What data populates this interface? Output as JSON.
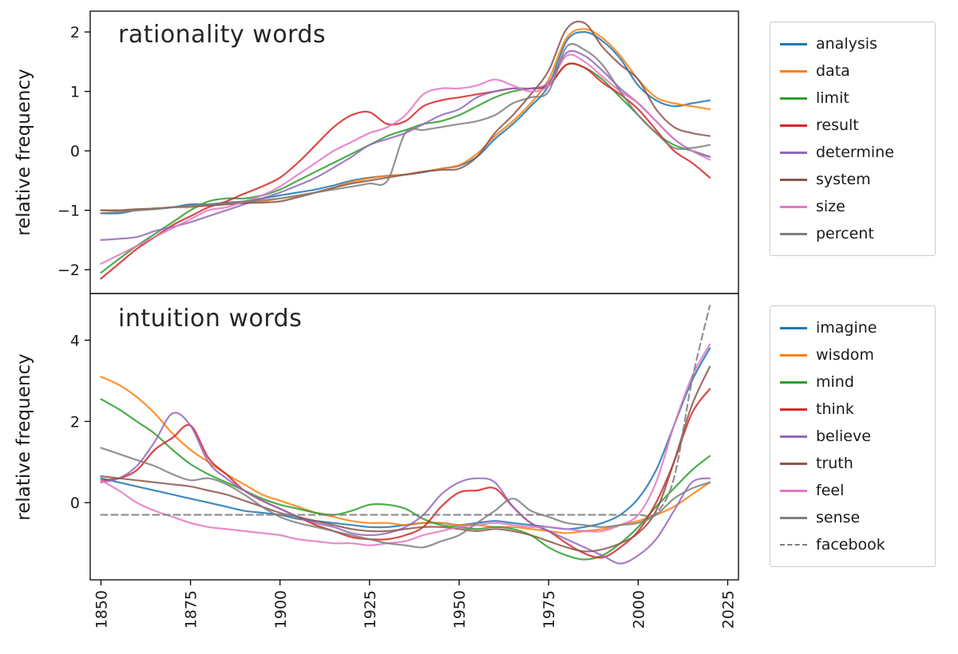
{
  "style": {
    "background": "#ffffff",
    "axis_color": "#000000",
    "text_color": "#1a1a1a",
    "legend_border": "#cccccc"
  },
  "chart_data": [
    {
      "type": "line",
      "title": "rationality words",
      "ylabel": "relative frequency",
      "xlabel": "",
      "legend_position": "right-outside",
      "grid": false,
      "xlim": [
        1847,
        2028
      ],
      "ylim": [
        -2.4,
        2.35
      ],
      "yticks": [
        2,
        1,
        0,
        -1,
        -2
      ],
      "xticks": [
        1850,
        1875,
        1900,
        1925,
        1950,
        1975,
        2000,
        2025
      ],
      "x": [
        1850,
        1855,
        1860,
        1865,
        1870,
        1875,
        1880,
        1885,
        1890,
        1895,
        1900,
        1905,
        1910,
        1915,
        1920,
        1925,
        1930,
        1935,
        1940,
        1945,
        1950,
        1955,
        1960,
        1965,
        1970,
        1975,
        1980,
        1985,
        1990,
        1995,
        2000,
        2005,
        2010,
        2015,
        2020
      ],
      "series": [
        {
          "name": "analysis",
          "color": "#1f77b4",
          "values": [
            -1.05,
            -1.05,
            -1.0,
            -0.98,
            -0.95,
            -0.9,
            -0.9,
            -0.87,
            -0.85,
            -0.8,
            -0.75,
            -0.7,
            -0.65,
            -0.58,
            -0.5,
            -0.45,
            -0.42,
            -0.4,
            -0.36,
            -0.3,
            -0.25,
            -0.1,
            0.2,
            0.45,
            0.75,
            1.1,
            1.85,
            2.0,
            1.85,
            1.55,
            1.1,
            0.85,
            0.75,
            0.8,
            0.85
          ]
        },
        {
          "name": "data",
          "color": "#ff7f0e",
          "values": [
            -1.0,
            -1.0,
            -1.0,
            -0.97,
            -0.95,
            -0.95,
            -0.92,
            -0.9,
            -0.87,
            -0.85,
            -0.8,
            -0.76,
            -0.7,
            -0.62,
            -0.52,
            -0.46,
            -0.42,
            -0.4,
            -0.35,
            -0.3,
            -0.24,
            -0.05,
            0.25,
            0.5,
            0.8,
            1.2,
            1.9,
            2.05,
            1.9,
            1.6,
            1.2,
            0.9,
            0.8,
            0.75,
            0.7
          ]
        },
        {
          "name": "limit",
          "color": "#2ca02c",
          "values": [
            -2.05,
            -1.82,
            -1.6,
            -1.4,
            -1.2,
            -1.0,
            -0.85,
            -0.8,
            -0.8,
            -0.75,
            -0.65,
            -0.5,
            -0.35,
            -0.2,
            -0.05,
            0.1,
            0.25,
            0.35,
            0.45,
            0.5,
            0.6,
            0.75,
            0.9,
            1.0,
            1.05,
            1.1,
            1.45,
            1.4,
            1.2,
            0.9,
            0.6,
            0.3,
            0.1,
            0.0,
            -0.1
          ]
        },
        {
          "name": "result",
          "color": "#d62728",
          "values": [
            -2.15,
            -1.9,
            -1.65,
            -1.45,
            -1.25,
            -1.1,
            -0.95,
            -0.85,
            -0.72,
            -0.6,
            -0.45,
            -0.2,
            0.1,
            0.4,
            0.6,
            0.65,
            0.45,
            0.5,
            0.75,
            0.85,
            0.9,
            0.95,
            1.0,
            1.05,
            1.05,
            1.1,
            1.45,
            1.4,
            1.15,
            0.95,
            0.7,
            0.35,
            0.0,
            -0.2,
            -0.45
          ]
        },
        {
          "name": "determine",
          "color": "#9467bd",
          "values": [
            -1.5,
            -1.48,
            -1.45,
            -1.35,
            -1.28,
            -1.2,
            -1.1,
            -1.0,
            -0.9,
            -0.8,
            -0.7,
            -0.58,
            -0.45,
            -0.28,
            -0.1,
            0.1,
            0.2,
            0.3,
            0.45,
            0.6,
            0.7,
            0.9,
            1.0,
            1.05,
            1.05,
            1.15,
            1.65,
            1.6,
            1.35,
            1.05,
            0.8,
            0.5,
            0.2,
            0.0,
            -0.1
          ]
        },
        {
          "name": "system",
          "color": "#8c564b",
          "values": [
            -1.0,
            -1.0,
            -0.98,
            -0.97,
            -0.95,
            -0.93,
            -0.92,
            -0.9,
            -0.88,
            -0.87,
            -0.85,
            -0.78,
            -0.7,
            -0.62,
            -0.55,
            -0.5,
            -0.45,
            -0.4,
            -0.35,
            -0.32,
            -0.3,
            -0.1,
            0.3,
            0.6,
            0.95,
            1.35,
            2.05,
            2.15,
            1.75,
            1.45,
            1.2,
            0.7,
            0.4,
            0.3,
            0.25
          ]
        },
        {
          "name": "size",
          "color": "#e377c2",
          "values": [
            -1.9,
            -1.75,
            -1.6,
            -1.45,
            -1.3,
            -1.15,
            -1.0,
            -0.95,
            -0.85,
            -0.75,
            -0.6,
            -0.4,
            -0.2,
            0.0,
            0.15,
            0.3,
            0.4,
            0.6,
            0.95,
            1.05,
            1.05,
            1.1,
            1.2,
            1.1,
            1.0,
            1.1,
            1.6,
            1.5,
            1.25,
            1.0,
            0.8,
            0.5,
            0.2,
            0.0,
            -0.15
          ]
        },
        {
          "name": "percent",
          "color": "#7f7f7f",
          "values": [
            -1.05,
            -1.03,
            -1.0,
            -0.98,
            -0.95,
            -0.93,
            -0.9,
            -0.88,
            -0.85,
            -0.83,
            -0.8,
            -0.75,
            -0.7,
            -0.65,
            -0.6,
            -0.55,
            -0.5,
            0.3,
            0.35,
            0.4,
            0.45,
            0.5,
            0.6,
            0.8,
            0.9,
            1.0,
            1.75,
            1.7,
            1.45,
            1.0,
            0.6,
            0.3,
            0.05,
            0.05,
            0.1
          ]
        }
      ]
    },
    {
      "type": "line",
      "title": "intuition words",
      "ylabel": "relative frequency",
      "xlabel": "",
      "legend_position": "right-outside",
      "grid": false,
      "xlim": [
        1847,
        2028
      ],
      "ylim": [
        -1.9,
        5.15
      ],
      "yticks": [
        4,
        2,
        0
      ],
      "xticks": [
        1850,
        1875,
        1900,
        1925,
        1950,
        1975,
        2000,
        2025
      ],
      "x": [
        1850,
        1855,
        1860,
        1865,
        1870,
        1875,
        1880,
        1885,
        1890,
        1895,
        1900,
        1905,
        1910,
        1915,
        1920,
        1925,
        1930,
        1935,
        1940,
        1945,
        1950,
        1955,
        1960,
        1965,
        1970,
        1975,
        1980,
        1985,
        1990,
        1995,
        2000,
        2005,
        2010,
        2015,
        2020
      ],
      "series": [
        {
          "name": "imagine",
          "color": "#1f77b4",
          "values": [
            0.6,
            0.5,
            0.4,
            0.3,
            0.2,
            0.1,
            0.0,
            -0.1,
            -0.2,
            -0.25,
            -0.3,
            -0.4,
            -0.45,
            -0.5,
            -0.55,
            -0.6,
            -0.6,
            -0.55,
            -0.5,
            -0.5,
            -0.55,
            -0.5,
            -0.45,
            -0.5,
            -0.55,
            -0.6,
            -0.65,
            -0.6,
            -0.5,
            -0.3,
            0.1,
            0.8,
            1.9,
            3.0,
            3.8
          ]
        },
        {
          "name": "wisdom",
          "color": "#ff7f0e",
          "values": [
            3.1,
            2.9,
            2.6,
            2.2,
            1.7,
            1.3,
            1.0,
            0.7,
            0.45,
            0.2,
            0.05,
            -0.1,
            -0.25,
            -0.35,
            -0.45,
            -0.5,
            -0.5,
            -0.55,
            -0.5,
            -0.5,
            -0.55,
            -0.55,
            -0.6,
            -0.6,
            -0.65,
            -0.7,
            -0.75,
            -0.7,
            -0.65,
            -0.55,
            -0.45,
            -0.3,
            -0.1,
            0.2,
            0.5
          ]
        },
        {
          "name": "mind",
          "color": "#2ca02c",
          "values": [
            2.55,
            2.3,
            2.0,
            1.7,
            1.3,
            0.95,
            0.7,
            0.5,
            0.3,
            0.1,
            -0.05,
            -0.15,
            -0.25,
            -0.3,
            -0.2,
            -0.05,
            -0.05,
            -0.15,
            -0.4,
            -0.55,
            -0.6,
            -0.65,
            -0.6,
            -0.65,
            -0.8,
            -1.1,
            -1.3,
            -1.4,
            -1.3,
            -1.0,
            -0.6,
            -0.1,
            0.35,
            0.8,
            1.15
          ]
        },
        {
          "name": "think",
          "color": "#d62728",
          "values": [
            0.55,
            0.6,
            0.8,
            1.3,
            1.6,
            1.9,
            1.1,
            0.7,
            0.3,
            0.05,
            -0.15,
            -0.35,
            -0.55,
            -0.7,
            -0.85,
            -0.9,
            -0.9,
            -0.8,
            -0.6,
            -0.1,
            0.25,
            0.3,
            0.35,
            -0.1,
            -0.5,
            -0.7,
            -1.0,
            -1.25,
            -1.35,
            -1.1,
            -0.7,
            0.0,
            1.0,
            2.2,
            2.8
          ]
        },
        {
          "name": "believe",
          "color": "#9467bd",
          "values": [
            0.5,
            0.6,
            0.9,
            1.5,
            2.2,
            1.9,
            1.0,
            0.6,
            0.3,
            0.05,
            -0.15,
            -0.35,
            -0.5,
            -0.6,
            -0.75,
            -0.8,
            -0.75,
            -0.6,
            -0.3,
            0.2,
            0.5,
            0.6,
            0.5,
            -0.1,
            -0.5,
            -0.7,
            -0.9,
            -1.1,
            -1.3,
            -1.5,
            -1.3,
            -0.9,
            -0.2,
            0.5,
            0.6
          ]
        },
        {
          "name": "truth",
          "color": "#8c564b",
          "values": [
            0.65,
            0.6,
            0.55,
            0.5,
            0.45,
            0.4,
            0.3,
            0.2,
            0.05,
            -0.1,
            -0.25,
            -0.35,
            -0.45,
            -0.55,
            -0.65,
            -0.7,
            -0.7,
            -0.65,
            -0.6,
            -0.6,
            -0.65,
            -0.7,
            -0.65,
            -0.7,
            -0.8,
            -0.95,
            -1.1,
            -1.2,
            -1.15,
            -1.0,
            -0.75,
            -0.2,
            1.0,
            2.4,
            3.35
          ]
        },
        {
          "name": "feel",
          "color": "#e377c2",
          "values": [
            0.55,
            0.3,
            0.0,
            -0.2,
            -0.35,
            -0.5,
            -0.6,
            -0.65,
            -0.7,
            -0.75,
            -0.8,
            -0.9,
            -0.95,
            -1.0,
            -1.0,
            -1.05,
            -1.0,
            -0.95,
            -0.8,
            -0.7,
            -0.6,
            -0.55,
            -0.5,
            -0.55,
            -0.6,
            -0.6,
            -0.65,
            -0.7,
            -0.7,
            -0.55,
            -0.3,
            0.5,
            1.9,
            3.1,
            3.9
          ]
        },
        {
          "name": "sense",
          "color": "#7f7f7f",
          "values": [
            1.35,
            1.2,
            1.05,
            0.9,
            0.7,
            0.55,
            0.6,
            0.45,
            0.2,
            -0.1,
            -0.35,
            -0.5,
            -0.6,
            -0.7,
            -0.8,
            -0.9,
            -1.0,
            -1.05,
            -1.1,
            -0.95,
            -0.8,
            -0.5,
            -0.2,
            0.1,
            -0.2,
            -0.35,
            -0.5,
            -0.55,
            -0.6,
            -0.55,
            -0.5,
            -0.3,
            0.1,
            0.35,
            0.5
          ]
        },
        {
          "name": "facebook",
          "color": "#7f7f7f",
          "dash": true,
          "values": [
            -0.3,
            -0.3,
            -0.3,
            -0.3,
            -0.3,
            -0.3,
            -0.3,
            -0.3,
            -0.3,
            -0.3,
            -0.3,
            -0.3,
            -0.3,
            -0.3,
            -0.3,
            -0.3,
            -0.3,
            -0.3,
            -0.3,
            -0.3,
            -0.3,
            -0.3,
            -0.3,
            -0.3,
            -0.3,
            -0.3,
            -0.3,
            -0.3,
            -0.3,
            -0.3,
            -0.3,
            -0.25,
            0.6,
            3.0,
            4.85
          ]
        }
      ]
    }
  ]
}
